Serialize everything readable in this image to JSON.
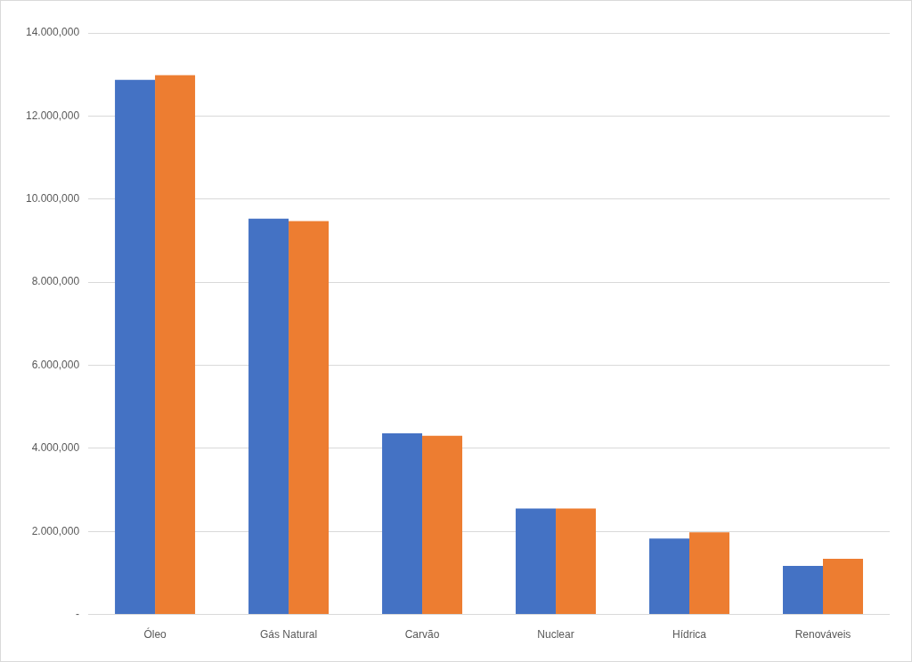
{
  "chart_data": {
    "type": "bar",
    "categories": [
      "Óleo",
      "Gás Natural",
      "Carvão",
      "Nuclear",
      "Hídrica",
      "Renováveis"
    ],
    "series": [
      {
        "color": "#4472c4",
        "values": [
          12870000,
          9530000,
          4360000,
          2550000,
          1830000,
          1170000
        ]
      },
      {
        "color": "#ed7d31",
        "values": [
          12980000,
          9470000,
          4300000,
          2550000,
          1980000,
          1340000
        ]
      }
    ],
    "ylim": [
      0,
      14000000
    ],
    "yticks": [
      {
        "value": 0,
        "label": "-"
      },
      {
        "value": 2000000,
        "label": "2.000,000"
      },
      {
        "value": 4000000,
        "label": "4.000,000"
      },
      {
        "value": 6000000,
        "label": "6.000,000"
      },
      {
        "value": 8000000,
        "label": "8.000,000"
      },
      {
        "value": 10000000,
        "label": "10.000,000"
      },
      {
        "value": 12000000,
        "label": "12.000,000"
      },
      {
        "value": 14000000,
        "label": "14.000,000"
      }
    ],
    "grid": true
  }
}
